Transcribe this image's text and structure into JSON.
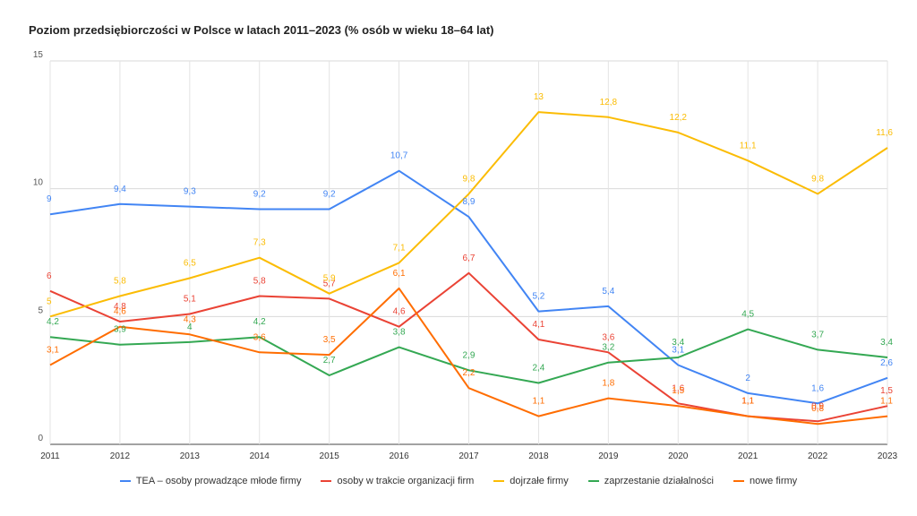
{
  "chart_data": {
    "type": "line",
    "title": "Poziom przedsiębiorczości w Polsce w latach 2011–2023 (% osób w wieku 18–64 lat)",
    "x": [
      "2011",
      "2012",
      "2013",
      "2014",
      "2015",
      "2016",
      "2017",
      "2018",
      "2019",
      "2020",
      "2021",
      "2022",
      "2023"
    ],
    "ylim": [
      0,
      15
    ],
    "yticks": [
      "0",
      "5",
      "10",
      "15"
    ],
    "grid": true,
    "legend": "bottom",
    "series": [
      {
        "name": "TEA – osoby prowadzące młode firmy",
        "color": "#4285F4",
        "values": [
          9,
          9.4,
          9.3,
          9.2,
          9.2,
          10.7,
          8.9,
          5.2,
          5.4,
          3.1,
          2,
          1.6,
          2.6
        ],
        "labels": [
          "9",
          "9,4",
          "9,3",
          "9,2",
          "9,2",
          "10,7",
          "8,9",
          "5,2",
          "5,4",
          "3,1",
          "2",
          "1,6",
          "2,6"
        ]
      },
      {
        "name": "osoby w trakcie organizacji firm",
        "color": "#EA4335",
        "values": [
          6,
          4.8,
          5.1,
          5.8,
          5.7,
          4.6,
          6.7,
          4.1,
          3.6,
          1.6,
          1.1,
          0.9,
          1.5
        ],
        "labels": [
          "6",
          "4,8",
          "5,1",
          "5,8",
          "5,7",
          "4,6",
          "6,7",
          "4,1",
          "3,6",
          "1,6",
          "1,1",
          "0,9",
          "1,5"
        ]
      },
      {
        "name": "dojrzałe firmy",
        "color": "#FBBC04",
        "values": [
          5,
          5.8,
          6.5,
          7.3,
          5.9,
          7.1,
          9.8,
          13,
          12.8,
          12.2,
          11.1,
          9.8,
          11.6
        ],
        "labels": [
          "5",
          "5,8",
          "6,5",
          "7,3",
          "5,9",
          "7,1",
          "9,8",
          "13",
          "12,8",
          "12,2",
          "11,1",
          "9,8",
          "11,6"
        ]
      },
      {
        "name": "zaprzestanie działalności",
        "color": "#34A853",
        "values": [
          4.2,
          3.9,
          4,
          4.2,
          2.7,
          3.8,
          2.9,
          2.4,
          3.2,
          3.4,
          4.5,
          3.7,
          3.4
        ],
        "labels": [
          "4,2",
          "3,9",
          "4",
          "4,2",
          "2,7",
          "3,8",
          "2,9",
          "2,4",
          "3,2",
          "3,4",
          "4,5",
          "3,7",
          "3,4"
        ]
      },
      {
        "name": "nowe firmy",
        "color": "#FF6D01",
        "values": [
          3.1,
          4.6,
          4.3,
          3.6,
          3.5,
          6.1,
          2.2,
          1.1,
          1.8,
          1.5,
          1.1,
          0.8,
          1.1
        ],
        "labels": [
          "3,1",
          "4,6",
          "4,3",
          "3,6",
          "3,5",
          "6,1",
          "2,2",
          "1,1",
          "1,8",
          "1,5",
          "1,1",
          "0,8",
          "1,1"
        ]
      }
    ]
  }
}
